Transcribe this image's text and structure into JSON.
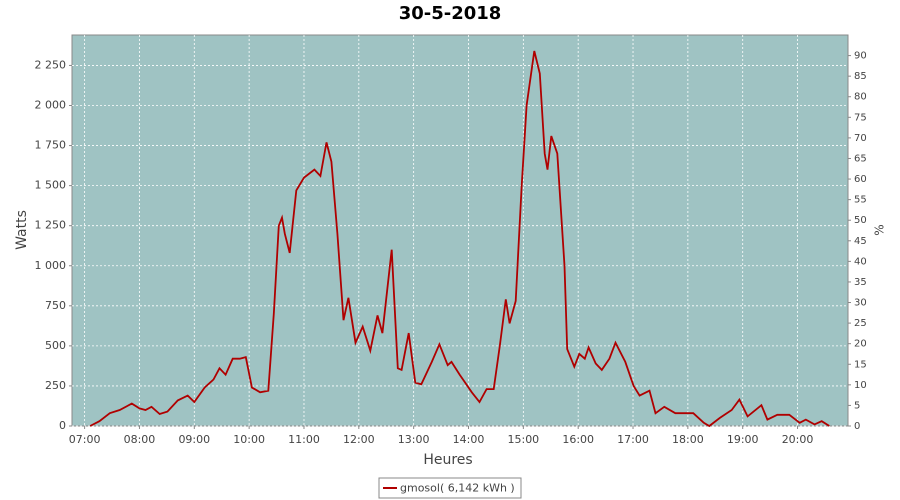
{
  "chart_data": {
    "type": "line",
    "title": "30-5-2018",
    "xlabel": "Heures",
    "ylabel": "Watts",
    "y2label": "%",
    "x": [
      7.1,
      7.27,
      7.46,
      7.64,
      7.86,
      8.0,
      8.11,
      8.22,
      8.37,
      8.51,
      8.7,
      8.88,
      9.0,
      9.19,
      9.35,
      9.46,
      9.57,
      9.7,
      9.83,
      9.94,
      10.05,
      10.2,
      10.35,
      10.45,
      10.54,
      10.6,
      10.65,
      10.74,
      10.86,
      11.0,
      11.19,
      11.3,
      11.41,
      11.5,
      11.61,
      11.72,
      11.81,
      11.94,
      12.07,
      12.21,
      12.34,
      12.43,
      12.6,
      12.71,
      12.78,
      12.91,
      13.03,
      13.14,
      13.33,
      13.47,
      13.62,
      13.69,
      13.84,
      14.06,
      14.2,
      14.33,
      14.46,
      14.57,
      14.68,
      14.75,
      14.86,
      14.97,
      15.06,
      15.2,
      15.3,
      15.39,
      15.44,
      15.51,
      15.62,
      15.75,
      15.8,
      15.93,
      16.02,
      16.12,
      16.19,
      16.32,
      16.43,
      16.57,
      16.68,
      16.86,
      17.01,
      17.12,
      17.3,
      17.41,
      17.57,
      17.77,
      18.1,
      18.29,
      18.39,
      18.58,
      18.8,
      18.94,
      19.09,
      19.34,
      19.45,
      19.63,
      19.85,
      20.04,
      20.15,
      20.31,
      20.44,
      20.58
    ],
    "series": [
      {
        "name": "gmosol( 6,142 kWh )",
        "color": "#b00000",
        "values": [
          0,
          30,
          80,
          100,
          140,
          110,
          100,
          120,
          75,
          90,
          160,
          190,
          150,
          240,
          290,
          360,
          320,
          420,
          420,
          430,
          240,
          210,
          220,
          700,
          1250,
          1300,
          1200,
          1080,
          1470,
          1550,
          1600,
          1560,
          1770,
          1650,
          1200,
          660,
          800,
          520,
          620,
          470,
          690,
          580,
          1100,
          360,
          350,
          580,
          270,
          260,
          400,
          510,
          380,
          400,
          320,
          210,
          150,
          230,
          230,
          500,
          790,
          640,
          780,
          1500,
          2000,
          2340,
          2200,
          1700,
          1600,
          1810,
          1700,
          1000,
          480,
          370,
          450,
          420,
          490,
          390,
          350,
          420,
          520,
          400,
          250,
          190,
          220,
          80,
          120,
          80,
          80,
          20,
          0,
          50,
          100,
          165,
          60,
          130,
          40,
          70,
          70,
          20,
          40,
          10,
          30,
          0
        ]
      }
    ],
    "xlim": [
      6.77,
      20.92
    ],
    "xticks": [
      {
        "value": 7,
        "label": "07:00"
      },
      {
        "value": 8,
        "label": "08:00"
      },
      {
        "value": 9,
        "label": "09:00"
      },
      {
        "value": 10,
        "label": "10:00"
      },
      {
        "value": 11,
        "label": "11:00"
      },
      {
        "value": 12,
        "label": "12:00"
      },
      {
        "value": 13,
        "label": "13:00"
      },
      {
        "value": 14,
        "label": "14:00"
      },
      {
        "value": 15,
        "label": "15:00"
      },
      {
        "value": 16,
        "label": "16:00"
      },
      {
        "value": 17,
        "label": "17:00"
      },
      {
        "value": 18,
        "label": "18:00"
      },
      {
        "value": 19,
        "label": "19:00"
      },
      {
        "value": 20,
        "label": "20:00"
      }
    ],
    "ylim": [
      0,
      2440
    ],
    "yticks": [
      0,
      250,
      500,
      750,
      {
        "value": 1000,
        "label": "1 000"
      },
      {
        "value": 1250,
        "label": "1 250"
      },
      {
        "value": 1500,
        "label": "1 500"
      },
      {
        "value": 1750,
        "label": "1 750"
      },
      {
        "value": 2000,
        "label": "2 000"
      },
      {
        "value": 2250,
        "label": "2 250"
      }
    ],
    "y2lim": [
      0,
      95
    ],
    "y2ticks": [
      0,
      5,
      10,
      15,
      20,
      25,
      30,
      35,
      40,
      45,
      50,
      55,
      60,
      65,
      70,
      75,
      80,
      85,
      90
    ],
    "grid": true,
    "background": "#9fc3c3"
  }
}
